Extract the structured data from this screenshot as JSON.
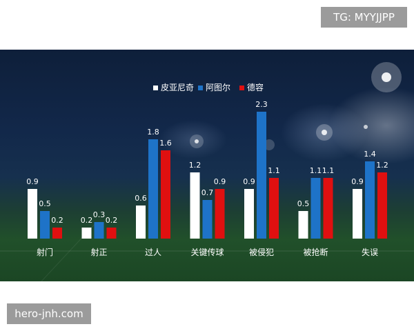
{
  "watermarks": {
    "tg": "TG: MYYJJPP",
    "site": "hero-jnh.com"
  },
  "colors": {
    "series_1": "#ffffff",
    "series_2": "#1e73c8",
    "series_3": "#e01010"
  },
  "chart_data": {
    "type": "bar",
    "categories": [
      "射门",
      "射正",
      "过人",
      "关键传球",
      "被侵犯",
      "被抢断",
      "失误"
    ],
    "series": [
      {
        "name": "皮亚尼奇",
        "values": [
          0.9,
          0.2,
          0.6,
          1.2,
          0.9,
          0.5,
          0.9
        ]
      },
      {
        "name": "阿图尔",
        "values": [
          0.5,
          0.3,
          1.8,
          0.7,
          2.3,
          1.1,
          1.4
        ]
      },
      {
        "name": "德容",
        "values": [
          0.2,
          0.2,
          1.6,
          0.9,
          1.1,
          1.1,
          1.2
        ]
      }
    ],
    "ylim": [
      0,
      2.3
    ],
    "grid": false,
    "legend_position": "top"
  }
}
